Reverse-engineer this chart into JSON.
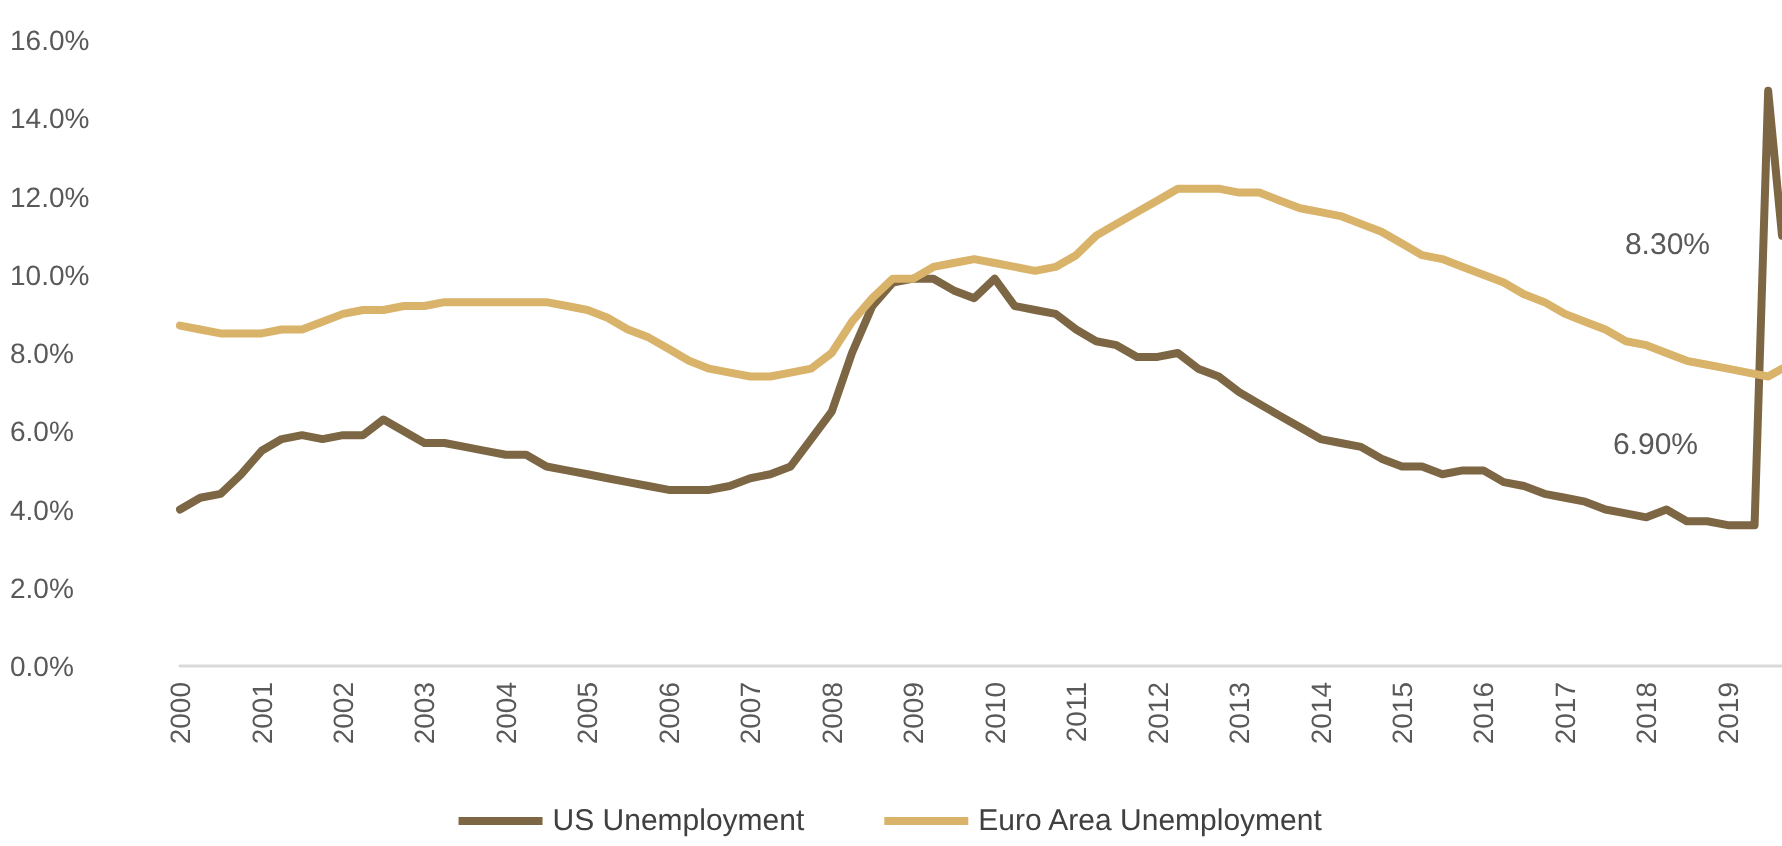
{
  "chart_data": {
    "type": "line",
    "legend": "bottom",
    "grid": false,
    "marker": "none",
    "line_style": "solid",
    "xlim": [
      "2000-01",
      "2019-09"
    ],
    "xticks": [
      "2000",
      "2001",
      "2002",
      "2003",
      "2004",
      "2005",
      "2006",
      "2007",
      "2008",
      "2009",
      "2010",
      "2011",
      "2012",
      "2013",
      "2014",
      "2015",
      "2016",
      "2017",
      "2018",
      "2019"
    ],
    "ylim": [
      0,
      16
    ],
    "yticks": [
      {
        "value": 0,
        "label": "0.0%"
      },
      {
        "value": 2,
        "label": "2.0%"
      },
      {
        "value": 4,
        "label": "4.0%"
      },
      {
        "value": 6,
        "label": "6.0%"
      },
      {
        "value": 8,
        "label": "8.0%"
      },
      {
        "value": 10,
        "label": "10.0%"
      },
      {
        "value": 12,
        "label": "12.0%"
      },
      {
        "value": 14,
        "label": "14.0%"
      },
      {
        "value": 16,
        "label": "16.0%"
      }
    ],
    "annotations": [
      "8.30%",
      "6.90%"
    ],
    "series": [
      {
        "name": "US Unemployment",
        "color": "#7d6643",
        "x": [
          "2000-01",
          "2000-04",
          "2000-07",
          "2000-10",
          "2001-01",
          "2001-04",
          "2001-07",
          "2001-10",
          "2002-01",
          "2002-04",
          "2002-07",
          "2002-10",
          "2003-01",
          "2003-04",
          "2003-07",
          "2003-10",
          "2004-01",
          "2004-04",
          "2004-07",
          "2004-10",
          "2005-01",
          "2005-04",
          "2005-07",
          "2005-10",
          "2006-01",
          "2006-04",
          "2006-07",
          "2006-10",
          "2007-01",
          "2007-04",
          "2007-07",
          "2007-10",
          "2008-01",
          "2008-04",
          "2008-07",
          "2008-10",
          "2009-01",
          "2009-04",
          "2009-07",
          "2009-10",
          "2010-01",
          "2010-04",
          "2010-07",
          "2010-10",
          "2011-01",
          "2011-04",
          "2011-07",
          "2011-10",
          "2012-01",
          "2012-04",
          "2012-07",
          "2012-10",
          "2013-01",
          "2013-04",
          "2013-07",
          "2013-10",
          "2014-01",
          "2014-04",
          "2014-07",
          "2014-10",
          "2015-01",
          "2015-04",
          "2015-07",
          "2015-10",
          "2016-01",
          "2016-04",
          "2016-07",
          "2016-10",
          "2017-01",
          "2017-04",
          "2017-07",
          "2017-10",
          "2018-01",
          "2018-04",
          "2018-07",
          "2018-10",
          "2019-01",
          "2019-04",
          "2019-05",
          "2019-07",
          "2019-09"
        ],
        "values": [
          4.0,
          4.3,
          4.4,
          4.9,
          5.5,
          5.8,
          5.9,
          5.8,
          5.9,
          5.9,
          6.3,
          6.0,
          5.7,
          5.7,
          5.6,
          5.5,
          5.4,
          5.4,
          5.1,
          5.0,
          4.9,
          4.8,
          4.7,
          4.6,
          4.5,
          4.5,
          4.5,
          4.6,
          4.8,
          4.9,
          5.1,
          5.8,
          6.5,
          8.0,
          9.2,
          9.8,
          9.9,
          9.9,
          9.6,
          9.4,
          9.9,
          9.2,
          9.1,
          9.0,
          8.6,
          8.3,
          8.2,
          7.9,
          7.9,
          8.0,
          7.6,
          7.4,
          7.0,
          6.7,
          6.4,
          6.1,
          5.8,
          5.7,
          5.6,
          5.3,
          5.1,
          5.1,
          4.9,
          5.0,
          5.0,
          4.7,
          4.6,
          4.4,
          4.3,
          4.2,
          4.0,
          3.9,
          3.8,
          4.0,
          3.7,
          3.7,
          3.6,
          3.6,
          3.6,
          14.7,
          11.0
        ]
      },
      {
        "name": "Euro Area Unemployment",
        "color": "#d9b36a",
        "x": [
          "2000-01",
          "2000-04",
          "2000-07",
          "2000-10",
          "2001-01",
          "2001-04",
          "2001-07",
          "2001-10",
          "2002-01",
          "2002-04",
          "2002-07",
          "2002-10",
          "2003-01",
          "2003-04",
          "2003-07",
          "2003-10",
          "2004-01",
          "2004-04",
          "2004-07",
          "2004-10",
          "2005-01",
          "2005-04",
          "2005-07",
          "2005-10",
          "2006-01",
          "2006-04",
          "2006-07",
          "2006-10",
          "2007-01",
          "2007-04",
          "2007-07",
          "2007-10",
          "2008-01",
          "2008-04",
          "2008-07",
          "2008-10",
          "2009-01",
          "2009-04",
          "2009-07",
          "2009-10",
          "2010-01",
          "2010-04",
          "2010-07",
          "2010-10",
          "2011-01",
          "2011-04",
          "2011-07",
          "2011-10",
          "2012-01",
          "2012-04",
          "2012-07",
          "2012-10",
          "2013-01",
          "2013-04",
          "2013-07",
          "2013-10",
          "2014-01",
          "2014-04",
          "2014-07",
          "2014-10",
          "2015-01",
          "2015-04",
          "2015-07",
          "2015-10",
          "2016-01",
          "2016-04",
          "2016-07",
          "2016-10",
          "2017-01",
          "2017-04",
          "2017-07",
          "2017-10",
          "2018-01",
          "2018-04",
          "2018-07",
          "2018-10",
          "2019-01",
          "2019-04",
          "2019-07",
          "2019-09"
        ],
        "values": [
          8.7,
          8.6,
          8.5,
          8.5,
          8.5,
          8.6,
          8.6,
          8.8,
          9.0,
          9.1,
          9.1,
          9.2,
          9.2,
          9.3,
          9.3,
          9.3,
          9.3,
          9.3,
          9.3,
          9.2,
          9.1,
          8.9,
          8.6,
          8.4,
          8.1,
          7.8,
          7.6,
          7.5,
          7.4,
          7.4,
          7.5,
          7.6,
          8.0,
          8.8,
          9.4,
          9.9,
          9.9,
          10.2,
          10.3,
          10.4,
          10.3,
          10.2,
          10.1,
          10.2,
          10.5,
          11.0,
          11.3,
          11.6,
          11.9,
          12.2,
          12.2,
          12.2,
          12.1,
          12.1,
          11.9,
          11.7,
          11.6,
          11.5,
          11.3,
          11.1,
          10.8,
          10.5,
          10.4,
          10.2,
          10.0,
          9.8,
          9.5,
          9.3,
          9.0,
          8.8,
          8.6,
          8.3,
          8.2,
          8.0,
          7.8,
          7.7,
          7.6,
          7.5,
          7.4,
          7.6
        ]
      }
    ]
  }
}
